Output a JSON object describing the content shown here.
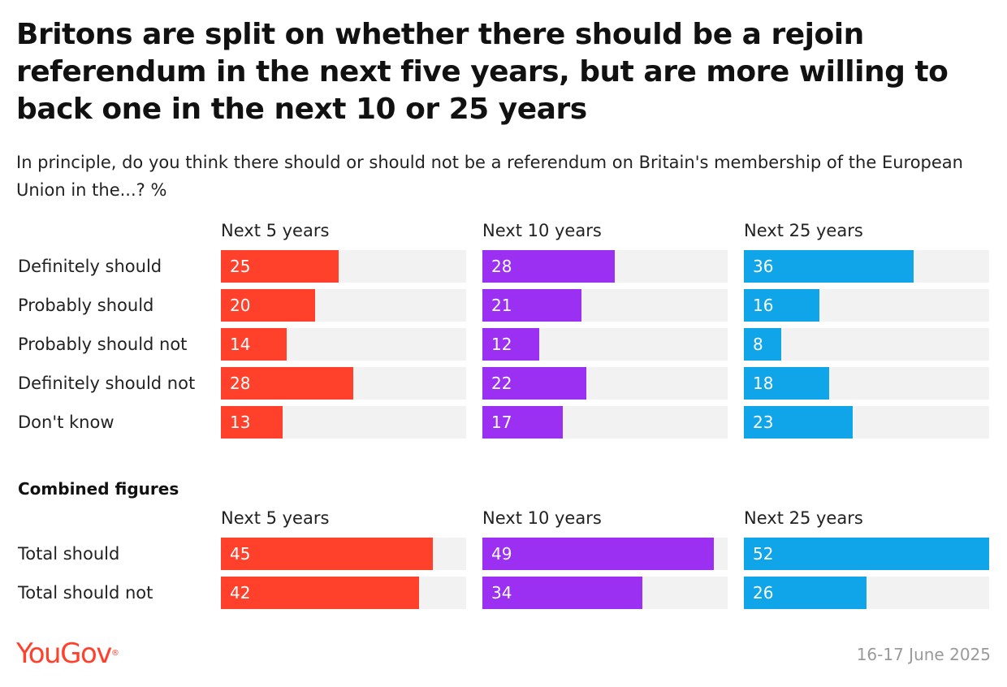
{
  "title": "Britons are split on whether there should be a rejoin referendum in the next five years, but are more willing to back one in the next 10 or 25 years",
  "subtitle": "In principle, do you think there should or should not be a referendum on Britain's membership of the European Union in the...? %",
  "combined_label": "Combined figures",
  "brand": {
    "name": "YouGov",
    "reg_mark": "®"
  },
  "date": "16-17 June 2025",
  "colors": {
    "next_5_years": "#ff412c",
    "next_10_years": "#9b30f2",
    "next_25_years": "#10a5e8",
    "track": "#f2f2f2"
  },
  "chart_data": [
    {
      "type": "bar",
      "orientation": "horizontal",
      "panels": [
        "Next 5 years",
        "Next 10 years",
        "Next 25 years"
      ],
      "categories": [
        "Definitely should",
        "Probably should",
        "Probably should not",
        "Definitely should not",
        "Don't know"
      ],
      "series": [
        {
          "name": "Next 5 years",
          "values": [
            25,
            20,
            14,
            28,
            13
          ]
        },
        {
          "name": "Next 10 years",
          "values": [
            28,
            21,
            12,
            22,
            17
          ]
        },
        {
          "name": "Next 25 years",
          "values": [
            36,
            16,
            8,
            18,
            23
          ]
        }
      ],
      "xlim": [
        0,
        52
      ]
    },
    {
      "type": "bar",
      "orientation": "horizontal",
      "title": "Combined figures",
      "panels": [
        "Next 5 years",
        "Next 10 years",
        "Next 25 years"
      ],
      "categories": [
        "Total should",
        "Total should not"
      ],
      "series": [
        {
          "name": "Next 5 years",
          "values": [
            45,
            42
          ]
        },
        {
          "name": "Next 10 years",
          "values": [
            49,
            34
          ]
        },
        {
          "name": "Next 25 years",
          "values": [
            52,
            26
          ]
        }
      ],
      "xlim": [
        0,
        52
      ]
    }
  ]
}
